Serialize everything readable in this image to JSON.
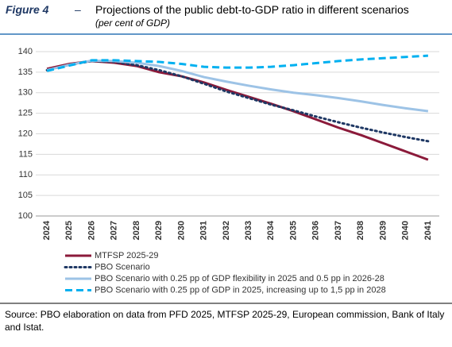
{
  "figure": {
    "label": "Figure 4",
    "separator": "–"
  },
  "chart_data": {
    "type": "line",
    "title": "Projections of the public debt-to-GDP ratio in different scenarios",
    "subtitle": "(per cent of GDP)",
    "categories": [
      "2024",
      "2025",
      "2026",
      "2027",
      "2028",
      "2029",
      "2030",
      "2031",
      "2032",
      "2033",
      "2034",
      "2035",
      "2036",
      "2037",
      "2038",
      "2039",
      "2040",
      "2041"
    ],
    "series": [
      {
        "name": "MTFSP 2025-29",
        "color": "#8b1a3a",
        "dash": "solid",
        "values": [
          135.8,
          137.0,
          137.7,
          137.3,
          136.5,
          135.0,
          134.0,
          132.5,
          130.7,
          129.0,
          127.3,
          125.5,
          123.5,
          121.5,
          119.7,
          117.7,
          115.7,
          113.7
        ]
      },
      {
        "name": "PBO Scenario",
        "color": "#1f3864",
        "dash": "dotted",
        "values": [
          135.5,
          136.8,
          137.7,
          137.5,
          136.7,
          135.5,
          134.0,
          132.2,
          130.3,
          128.7,
          127.1,
          125.7,
          124.2,
          122.8,
          121.5,
          120.3,
          119.2,
          118.2
        ]
      },
      {
        "name": "PBO Scenario with 0.25 pp of GDP flexibility in 2025 and 0.5 pp in 2026-28",
        "color": "#9dc3e6",
        "dash": "solid",
        "values": [
          135.5,
          136.8,
          137.8,
          137.7,
          137.3,
          136.5,
          135.3,
          133.8,
          132.7,
          131.7,
          130.8,
          130.0,
          129.4,
          128.7,
          127.9,
          127.0,
          126.2,
          125.5
        ]
      },
      {
        "name": "PBO Scenario with 0.25 pp of GDP in 2025, increasing up to 1,5 pp in 2028",
        "color": "#00b0f0",
        "dash": "dashed",
        "values": [
          135.3,
          136.6,
          137.9,
          137.9,
          137.7,
          137.5,
          137.0,
          136.3,
          136.1,
          136.1,
          136.3,
          136.7,
          137.2,
          137.7,
          138.1,
          138.4,
          138.7,
          139.0
        ]
      }
    ],
    "ylim": [
      100,
      140
    ],
    "yticks": [
      100,
      105,
      110,
      115,
      120,
      125,
      130,
      135,
      140
    ],
    "grid": true
  },
  "source": "Source: PBO elaboration on data from PFD 2025, MTFSP 2025-29, European commission, Bank of Italy and Istat."
}
